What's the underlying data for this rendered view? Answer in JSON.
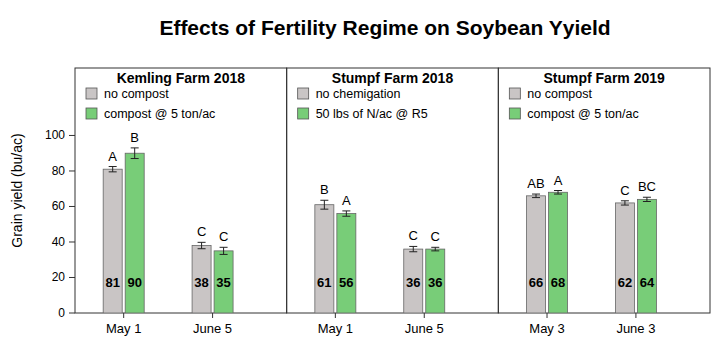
{
  "title": "Effects of Fertility Regime on Soybean Yyield",
  "y_label": "Grain yield (bu/ac)",
  "chart_data": [
    {
      "type": "bar",
      "title": "Kemling Farm 2018",
      "categories": [
        "May 1",
        "June 5"
      ],
      "series": [
        {
          "name": "no compost",
          "color": "#c9c5c5",
          "values": [
            81,
            38
          ],
          "errors": [
            1.5,
            1.8
          ],
          "letters": [
            "A",
            "C"
          ]
        },
        {
          "name": "compost @ 5 ton/ac",
          "color": "#78cd78",
          "values": [
            90,
            35
          ],
          "errors": [
            3,
            2
          ],
          "letters": [
            "B",
            "C"
          ]
        }
      ],
      "ylim": [
        0,
        138
      ],
      "yticks": [
        0,
        20,
        40,
        60,
        80,
        100
      ],
      "data_labels": true
    },
    {
      "type": "bar",
      "title": "Stumpf Farm 2018",
      "categories": [
        "May 1",
        "June 5"
      ],
      "series": [
        {
          "name": "no chemigation",
          "color": "#c9c5c5",
          "values": [
            61,
            36
          ],
          "errors": [
            2.5,
            1.5
          ],
          "letters": [
            "B",
            "C"
          ]
        },
        {
          "name": "50 lbs of N/ac @ R5",
          "color": "#78cd78",
          "values": [
            56,
            36
          ],
          "errors": [
            1.5,
            1
          ],
          "letters": [
            "A",
            "C"
          ]
        }
      ],
      "ylim": [
        0,
        138
      ],
      "data_labels": true,
      "tick_labels": "x"
    },
    {
      "type": "bar",
      "title": "Stumpf Farm 2019",
      "categories": [
        "May 3",
        "June 3"
      ],
      "series": [
        {
          "name": "no compost",
          "color": "#c9c5c5",
          "values": [
            66,
            62
          ],
          "errors": [
            1,
            1.2
          ],
          "letters": [
            "AB",
            "C"
          ]
        },
        {
          "name": "compost @ 5 ton/ac",
          "color": "#78cd78",
          "values": [
            68,
            64
          ],
          "errors": [
            1,
            1.2
          ],
          "letters": [
            "A",
            "BC"
          ]
        }
      ],
      "ylim": [
        0,
        138
      ],
      "data_labels": true,
      "tick_labels": "x"
    }
  ]
}
